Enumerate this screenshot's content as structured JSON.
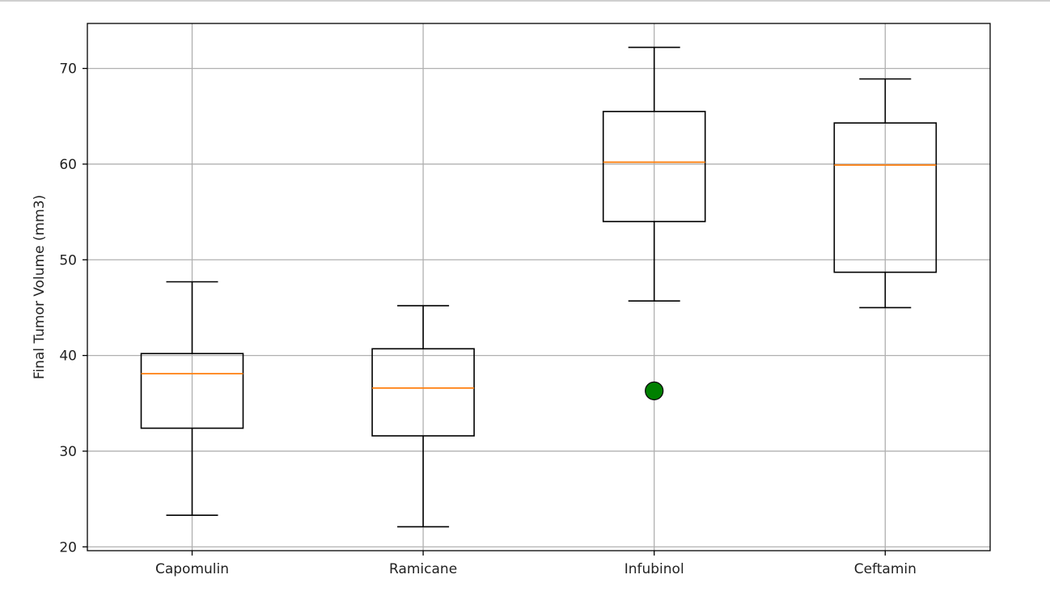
{
  "chart_data": {
    "type": "boxplot",
    "title": "",
    "xlabel": "",
    "ylabel": "Final Tumor Volume (mm3)",
    "ylim": [
      19.6,
      74.7
    ],
    "yticks": [
      20,
      30,
      40,
      50,
      60,
      70
    ],
    "grid": true,
    "categories": [
      "Capomulin",
      "Ramicane",
      "Infubinol",
      "Ceftamin"
    ],
    "boxes": [
      {
        "name": "Capomulin",
        "whislo": 23.3,
        "q1": 32.4,
        "med": 38.1,
        "q3": 40.2,
        "whishi": 47.7,
        "fliers": []
      },
      {
        "name": "Ramicane",
        "whislo": 22.1,
        "q1": 31.6,
        "med": 36.6,
        "q3": 40.7,
        "whishi": 45.2,
        "fliers": []
      },
      {
        "name": "Infubinol",
        "whislo": 45.7,
        "q1": 54.0,
        "med": 60.2,
        "q3": 65.5,
        "whishi": 72.2,
        "fliers": [
          36.3
        ]
      },
      {
        "name": "Ceftamin",
        "whislo": 45.0,
        "q1": 48.7,
        "med": 59.9,
        "q3": 64.3,
        "whishi": 68.9,
        "fliers": []
      }
    ],
    "colors": {
      "box": "#000000",
      "median": "#ff7f0e",
      "flier_fill": "#008000",
      "flier_edge": "#000000",
      "grid": "#b0b0b0"
    }
  }
}
